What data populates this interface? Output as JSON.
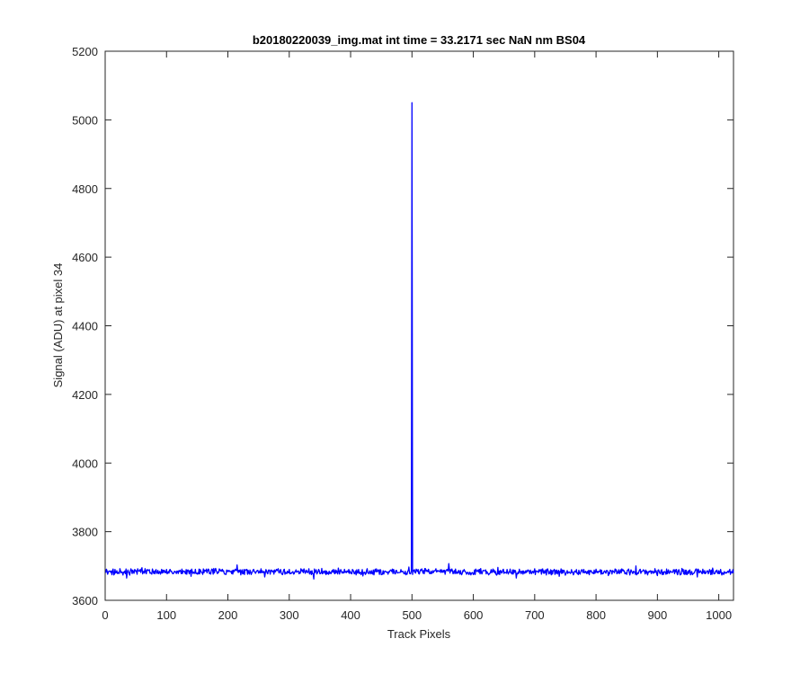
{
  "chart_data": {
    "type": "line",
    "title": "b20180220039_img.mat int time = 33.2171 sec  NaN nm BS04",
    "xlabel": "Track Pixels",
    "ylabel": "Signal (ADU) at pixel 34",
    "xlim": [
      0,
      1024
    ],
    "ylim": [
      3600,
      5200
    ],
    "xticks": [
      0,
      100,
      200,
      300,
      400,
      500,
      600,
      700,
      800,
      900,
      1000
    ],
    "yticks": [
      3600,
      3800,
      4000,
      4200,
      4400,
      4600,
      4800,
      5000,
      5200
    ],
    "xtick_labels": [
      "0",
      "100",
      "200",
      "300",
      "400",
      "500",
      "600",
      "700",
      "800",
      "900",
      "1000"
    ],
    "ytick_labels": [
      "3600",
      "3800",
      "4000",
      "4200",
      "4400",
      "4600",
      "4800",
      "5000",
      "5200"
    ],
    "grid": false,
    "line_color": "#0000ff",
    "series": [
      {
        "baseline": 3683,
        "noise_amplitude": 8,
        "x_range": [
          1,
          1024
        ],
        "peak": {
          "x": 500,
          "y": 5050
        },
        "points": [
          [
            1,
            3680
          ],
          [
            35,
            3665
          ],
          [
            60,
            3695
          ],
          [
            100,
            3690
          ],
          [
            140,
            3670
          ],
          [
            180,
            3693
          ],
          [
            215,
            3703
          ],
          [
            260,
            3668
          ],
          [
            300,
            3690
          ],
          [
            340,
            3662
          ],
          [
            380,
            3694
          ],
          [
            420,
            3671
          ],
          [
            470,
            3690
          ],
          [
            495,
            3697
          ],
          [
            500,
            5050
          ],
          [
            503,
            3685
          ],
          [
            530,
            3678
          ],
          [
            560,
            3707
          ],
          [
            600,
            3675
          ],
          [
            640,
            3696
          ],
          [
            670,
            3665
          ],
          [
            700,
            3692
          ],
          [
            740,
            3670
          ],
          [
            780,
            3690
          ],
          [
            820,
            3672
          ],
          [
            865,
            3700
          ],
          [
            900,
            3672
          ],
          [
            940,
            3693
          ],
          [
            965,
            3668
          ],
          [
            990,
            3694
          ],
          [
            1024,
            3680
          ]
        ]
      }
    ]
  }
}
